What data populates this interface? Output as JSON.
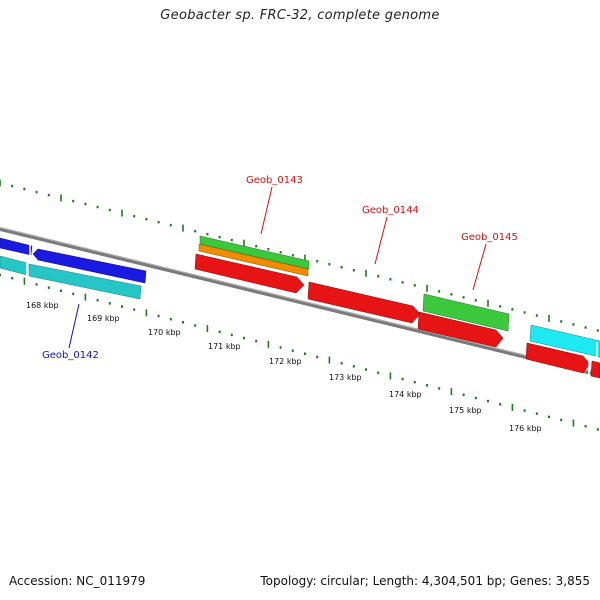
{
  "title": "Geobacter sp. FRC-32, complete genome",
  "footer": {
    "accession": "Accession: NC_011979",
    "summary": "Topology: circular; Length: 4,304,501 bp; Genes: 3,855"
  },
  "colors": {
    "backbone": "#7a7a7a",
    "tick": "#1f7a1f",
    "blue": "#1a1ae0",
    "cyan_dark": "#26c6c6",
    "cyan_bright": "#1ee8f0",
    "green": "#3cc83c",
    "orange": "#f08c00",
    "red": "#e61414",
    "label_red": "#d01010",
    "label_blue": "#1010c8"
  },
  "ticks": [
    "168 kbp",
    "169 kbp",
    "170 kbp",
    "171 kbp",
    "172 kbp",
    "173 kbp",
    "174 kbp",
    "175 kbp",
    "176 kbp"
  ],
  "genes": [
    {
      "name": "Geob_0142",
      "color": "label_blue"
    },
    {
      "name": "Geob_0143",
      "color": "label_red"
    },
    {
      "name": "Geob_0144",
      "color": "label_red"
    },
    {
      "name": "Geob_0145",
      "color": "label_red"
    }
  ]
}
